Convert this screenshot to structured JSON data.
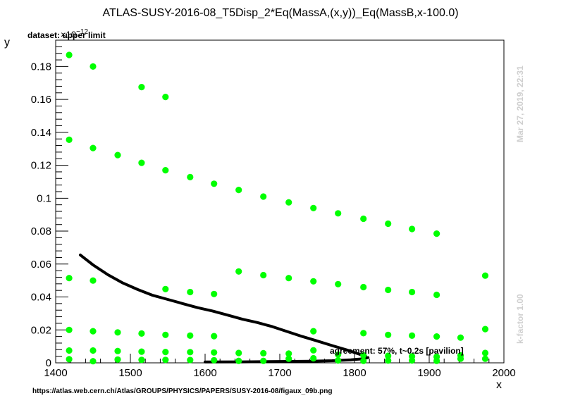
{
  "header": {
    "title": "ATLAS-SUSY-2016-08_T5Disp_2*Eq(MassA,(x,y))_Eq(MassB,x-100.0)"
  },
  "annotations": {
    "dataset": "dataset: upper limit",
    "exponent_base": "×10",
    "exponent_power": "−12",
    "agreement": "agreement: 57%, t~0.2s [pavilion]",
    "datestamp": "Mar 27, 2019, 22:31",
    "kfactor": "k-factor 1.00",
    "source": "https://atlas.web.cern.ch/Atlas/GROUPS/PHYSICS/PAPERS/SUSY-2016-08/figaux_09b.png"
  },
  "chart_data": {
    "type": "scatter",
    "xlabel": "x",
    "ylabel": "y",
    "xlim": [
      1400,
      2000
    ],
    "ylim": [
      0,
      0.196
    ],
    "xticks": [
      1400,
      1500,
      1600,
      1700,
      1800,
      1900,
      2000
    ],
    "yticks": [
      0,
      0.02,
      0.04,
      0.06,
      0.08,
      0.1,
      0.12,
      0.14,
      0.16,
      0.18
    ],
    "ytick_labels": [
      "0",
      "0.02",
      "0.04",
      "0.06",
      "0.08",
      "0.1",
      "0.12",
      "0.14",
      "0.16",
      "0.18"
    ],
    "grid": false,
    "marker_color": "#00ff00",
    "line_color": "#000000",
    "points": [
      [
        1418,
        0.187
      ],
      [
        1450,
        0.18
      ],
      [
        1515,
        0.1675
      ],
      [
        1547,
        0.1615
      ],
      [
        1418,
        0.1355
      ],
      [
        1450,
        0.1305
      ],
      [
        1483,
        0.1262
      ],
      [
        1515,
        0.1215
      ],
      [
        1547,
        0.117
      ],
      [
        1580,
        0.1128
      ],
      [
        1612,
        0.1088
      ],
      [
        1645,
        0.105
      ],
      [
        1678,
        0.101
      ],
      [
        1712,
        0.0975
      ],
      [
        1745,
        0.094
      ],
      [
        1778,
        0.0908
      ],
      [
        1812,
        0.0875
      ],
      [
        1845,
        0.0845
      ],
      [
        1877,
        0.0813
      ],
      [
        1910,
        0.0785
      ],
      [
        1418,
        0.0515
      ],
      [
        1450,
        0.05
      ],
      [
        1547,
        0.0448
      ],
      [
        1580,
        0.043
      ],
      [
        1612,
        0.0418
      ],
      [
        1645,
        0.0555
      ],
      [
        1678,
        0.0533
      ],
      [
        1712,
        0.0515
      ],
      [
        1745,
        0.0495
      ],
      [
        1778,
        0.0478
      ],
      [
        1812,
        0.046
      ],
      [
        1845,
        0.0443
      ],
      [
        1877,
        0.043
      ],
      [
        1910,
        0.0413
      ],
      [
        1975,
        0.053
      ],
      [
        1418,
        0.02
      ],
      [
        1450,
        0.0192
      ],
      [
        1483,
        0.0185
      ],
      [
        1515,
        0.0178
      ],
      [
        1547,
        0.017
      ],
      [
        1580,
        0.0165
      ],
      [
        1612,
        0.0162
      ],
      [
        1745,
        0.0192
      ],
      [
        1812,
        0.018
      ],
      [
        1845,
        0.017
      ],
      [
        1877,
        0.0165
      ],
      [
        1910,
        0.016
      ],
      [
        1942,
        0.0153
      ],
      [
        1975,
        0.0205
      ],
      [
        1418,
        0.0075
      ],
      [
        1450,
        0.0075
      ],
      [
        1483,
        0.0072
      ],
      [
        1515,
        0.0068
      ],
      [
        1547,
        0.0066
      ],
      [
        1580,
        0.0065
      ],
      [
        1612,
        0.0063
      ],
      [
        1645,
        0.006
      ],
      [
        1678,
        0.0058
      ],
      [
        1712,
        0.0056
      ],
      [
        1745,
        0.0076
      ],
      [
        1778,
        0.005
      ],
      [
        1812,
        0.0046
      ],
      [
        1845,
        0.0043
      ],
      [
        1877,
        0.004
      ],
      [
        1910,
        0.0037
      ],
      [
        1942,
        0.0045
      ],
      [
        1975,
        0.006
      ],
      [
        1418,
        0.0022
      ],
      [
        1450,
        0.001
      ],
      [
        1483,
        0.002
      ],
      [
        1515,
        0.0018
      ],
      [
        1547,
        0.0018
      ],
      [
        1580,
        0.0017
      ],
      [
        1612,
        0.0016
      ],
      [
        1645,
        0.0012
      ],
      [
        1678,
        0.0012
      ],
      [
        1712,
        0.0025
      ],
      [
        1745,
        0.0028
      ],
      [
        1778,
        0.0015
      ],
      [
        1812,
        0.0012
      ],
      [
        1845,
        0.0014
      ],
      [
        1877,
        0.0015
      ],
      [
        1910,
        0.0012
      ],
      [
        1942,
        0.0025
      ],
      [
        1975,
        0.0025
      ]
    ],
    "lines": [
      {
        "points": [
          [
            1433,
            0.0655
          ],
          [
            1450,
            0.0595
          ],
          [
            1470,
            0.0535
          ],
          [
            1490,
            0.0485
          ],
          [
            1510,
            0.0445
          ],
          [
            1530,
            0.041
          ],
          [
            1550,
            0.0385
          ],
          [
            1570,
            0.036
          ],
          [
            1590,
            0.0335
          ],
          [
            1610,
            0.0315
          ],
          [
            1630,
            0.029
          ],
          [
            1650,
            0.0265
          ],
          [
            1670,
            0.0245
          ],
          [
            1690,
            0.022
          ],
          [
            1710,
            0.019
          ],
          [
            1730,
            0.016
          ],
          [
            1750,
            0.0133
          ],
          [
            1770,
            0.0105
          ],
          [
            1790,
            0.0078
          ],
          [
            1805,
            0.0055
          ],
          [
            1815,
            0.004
          ]
        ]
      },
      {
        "points": [
          [
            1600,
            0.0005
          ],
          [
            1650,
            0.0006
          ],
          [
            1700,
            0.0008
          ],
          [
            1740,
            0.001
          ],
          [
            1770,
            0.0013
          ],
          [
            1795,
            0.0018
          ],
          [
            1812,
            0.0025
          ],
          [
            1818,
            0.0032
          ]
        ]
      }
    ]
  }
}
